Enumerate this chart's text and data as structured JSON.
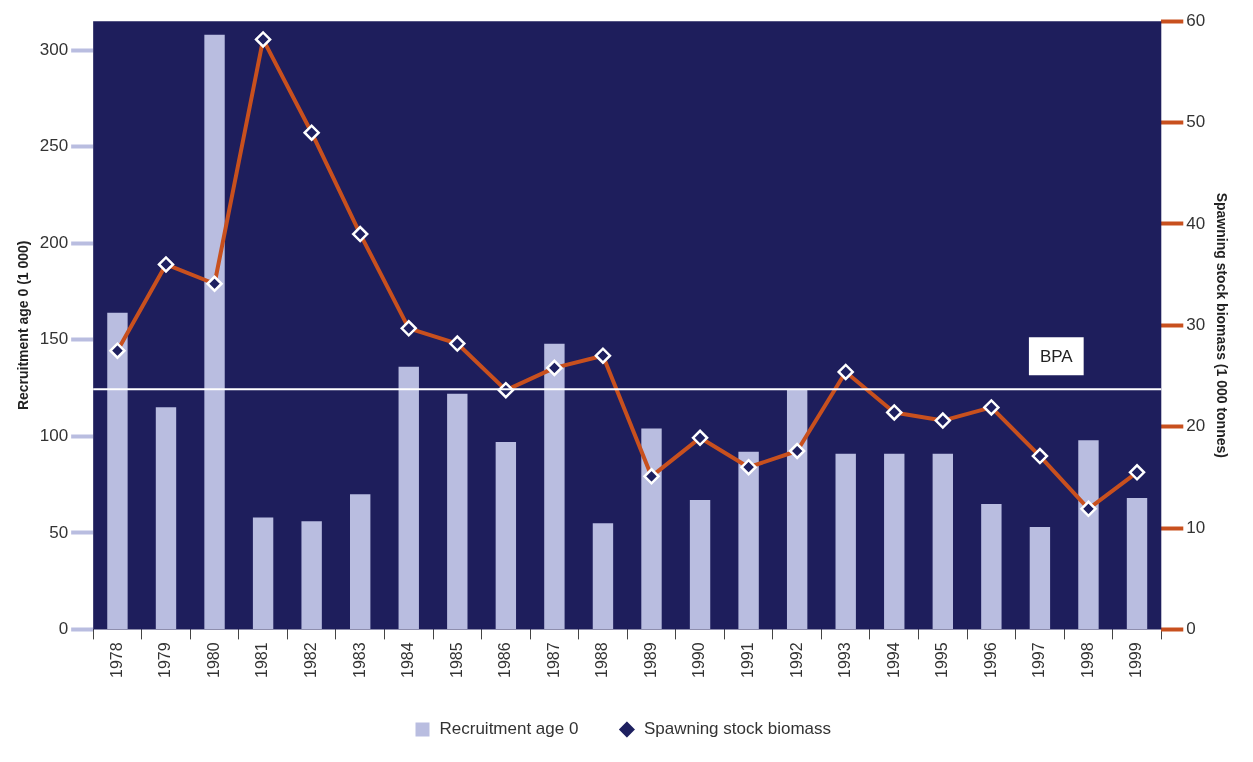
{
  "chart_data": {
    "type": "bar",
    "categories": [
      "1978",
      "1979",
      "1980",
      "1981",
      "1982",
      "1983",
      "1984",
      "1985",
      "1986",
      "1987",
      "1988",
      "1989",
      "1990",
      "1991",
      "1992",
      "1993",
      "1994",
      "1995",
      "1996",
      "1997",
      "1998",
      "1999"
    ],
    "series": [
      {
        "name": "Recruitment age 0",
        "color": "#b9bde0",
        "values": [
          164,
          115,
          308,
          58,
          56,
          70,
          136,
          122,
          97,
          148,
          55,
          104,
          67,
          92,
          124,
          91,
          91,
          91,
          65,
          53,
          98,
          68
        ]
      },
      {
        "name": "Spawning stock biomass",
        "type": "line",
        "axis": "y2",
        "color": "#c8501e",
        "marker": "diamond",
        "values": [
          27.5,
          36,
          34.1,
          58.2,
          49,
          39,
          29.7,
          28.2,
          23.6,
          25.8,
          27,
          15.1,
          18.9,
          16,
          17.6,
          25.4,
          21.4,
          20.6,
          21.9,
          17.1,
          11.9,
          15.5
        ]
      }
    ],
    "ylabel": "Recruitment age 0 (1 000)",
    "y2label": "Spawning stock biomass (1 000 tonnes)",
    "ylim": [
      0,
      315
    ],
    "yticks": [
      0,
      50,
      100,
      150,
      200,
      250,
      300
    ],
    "y2lim": [
      0,
      60
    ],
    "y2ticks": [
      0,
      10,
      20,
      30,
      40,
      50,
      60
    ],
    "ref_lines": [
      {
        "axis": "y2",
        "value": 23.7,
        "label": "BPA",
        "color": "#ffffff"
      }
    ],
    "grid": false,
    "legend": "bottom"
  }
}
